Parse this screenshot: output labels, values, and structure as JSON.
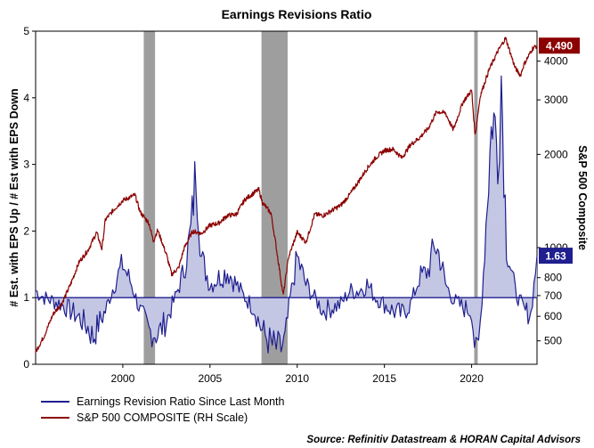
{
  "chart_data": {
    "type": "line",
    "title": "Earnings Revisions Ratio",
    "ylabel_left": "# Est. with EPS Up / # Est with EPS Down",
    "ylabel_right": "S&P 500 Composite",
    "source": "Source: Refinitiv Datastream & HORAN Capital Advisors",
    "x_ticks": [
      "2000",
      "2005",
      "2010",
      "2015",
      "2020"
    ],
    "x_range": [
      1995.0,
      2023.75
    ],
    "y_left": {
      "ylim": [
        0,
        5
      ],
      "ticks": [
        "0",
        "1",
        "2",
        "3",
        "4",
        "5"
      ]
    },
    "y_right": {
      "scale": "log",
      "ylim": [
        420,
        5000
      ],
      "ticks": [
        "500",
        "600",
        "700",
        "800",
        "1000",
        "2000",
        "3000",
        "4000"
      ],
      "tick_values": [
        500,
        600,
        700,
        800,
        1000,
        2000,
        3000,
        4000
      ]
    },
    "reference_line": 1.0,
    "recessions": [
      [
        2001.2,
        2001.85
      ],
      [
        2007.95,
        2009.45
      ],
      [
        2020.15,
        2020.35
      ]
    ],
    "colors": {
      "ratio": "#1f1f8f",
      "ratio_fill": "#c4c7e3",
      "sp500": "#8b0000",
      "recession": "#9e9e9e",
      "grid": "#ffffff"
    },
    "badges": [
      {
        "series": "sp500",
        "label": "4,490",
        "value": 4490
      },
      {
        "series": "ratio",
        "label": "1.63",
        "value": 1.63
      }
    ],
    "legend_position": "bottom-left",
    "series": [
      {
        "name": "Earnings Revision Ratio Since Last Month",
        "axis": "left",
        "x": [
          1995.0,
          1995.5,
          1996.0,
          1996.5,
          1997.0,
          1997.5,
          1998.0,
          1998.3,
          1998.6,
          1999.0,
          1999.5,
          2000.0,
          2000.5,
          2001.0,
          2001.5,
          2002.0,
          2002.5,
          2003.0,
          2003.5,
          2003.9,
          2004.2,
          2004.5,
          2005.0,
          2005.5,
          2006.0,
          2006.5,
          2007.0,
          2007.5,
          2008.0,
          2008.5,
          2008.8,
          2009.0,
          2009.3,
          2009.6,
          2010.0,
          2010.5,
          2011.0,
          2011.5,
          2012.0,
          2012.5,
          2013.0,
          2013.5,
          2014.0,
          2014.5,
          2015.0,
          2015.5,
          2016.0,
          2016.5,
          2017.0,
          2017.5,
          2017.9,
          2018.2,
          2018.5,
          2019.0,
          2019.5,
          2020.0,
          2020.25,
          2020.4,
          2020.6,
          2020.9,
          2021.2,
          2021.5,
          2021.7,
          2022.0,
          2022.5,
          2023.0,
          2023.4,
          2023.75
        ],
        "values": [
          1.1,
          1.0,
          0.95,
          0.9,
          0.8,
          0.7,
          0.55,
          0.4,
          0.6,
          0.8,
          1.2,
          1.5,
          1.2,
          0.8,
          0.5,
          0.45,
          0.65,
          1.0,
          1.4,
          2.0,
          2.95,
          1.6,
          1.2,
          1.3,
          1.4,
          1.2,
          1.0,
          0.85,
          0.5,
          0.3,
          0.25,
          0.2,
          0.35,
          1.0,
          1.6,
          1.2,
          1.0,
          0.8,
          0.85,
          0.9,
          1.1,
          1.1,
          1.2,
          1.0,
          0.9,
          0.8,
          0.75,
          0.9,
          1.3,
          1.4,
          1.8,
          1.6,
          1.2,
          0.95,
          0.85,
          0.8,
          0.1,
          0.3,
          1.0,
          2.5,
          3.8,
          3.2,
          4.35,
          1.8,
          1.1,
          0.8,
          0.75,
          1.63
        ]
      },
      {
        "name": "S&P 500 COMPOSITE (RH Scale)",
        "axis": "right",
        "x": [
          1995.0,
          1995.5,
          1996.0,
          1996.5,
          1997.0,
          1997.5,
          1998.0,
          1998.5,
          1998.8,
          1999.0,
          1999.5,
          2000.0,
          2000.7,
          2001.0,
          2001.5,
          2001.75,
          2002.0,
          2002.5,
          2002.8,
          2003.2,
          2003.5,
          2004.0,
          2004.5,
          2005.0,
          2005.5,
          2006.0,
          2006.5,
          2007.0,
          2007.5,
          2007.8,
          2008.0,
          2008.5,
          2008.8,
          2009.2,
          2009.5,
          2010.0,
          2010.5,
          2011.0,
          2011.5,
          2012.0,
          2012.5,
          2013.0,
          2013.5,
          2014.0,
          2014.5,
          2015.0,
          2015.5,
          2016.0,
          2016.5,
          2017.0,
          2017.5,
          2018.0,
          2018.5,
          2018.95,
          2019.5,
          2020.0,
          2020.2,
          2020.5,
          2021.0,
          2021.5,
          2021.95,
          2022.5,
          2022.8,
          2023.0,
          2023.5,
          2023.75
        ],
        "values": [
          460,
          520,
          610,
          660,
          760,
          900,
          980,
          1120,
          990,
          1230,
          1330,
          1420,
          1480,
          1300,
          1200,
          1050,
          1140,
          950,
          820,
          860,
          990,
          1130,
          1110,
          1180,
          1200,
          1270,
          1280,
          1430,
          1500,
          1540,
          1400,
          1290,
          1000,
          700,
          930,
          1120,
          1040,
          1280,
          1270,
          1320,
          1370,
          1480,
          1630,
          1800,
          1950,
          2060,
          2080,
          1950,
          2150,
          2260,
          2420,
          2750,
          2720,
          2400,
          2950,
          3220,
          2300,
          3100,
          3750,
          4300,
          4750,
          3800,
          3600,
          3900,
          4400,
          4490
        ]
      }
    ]
  }
}
